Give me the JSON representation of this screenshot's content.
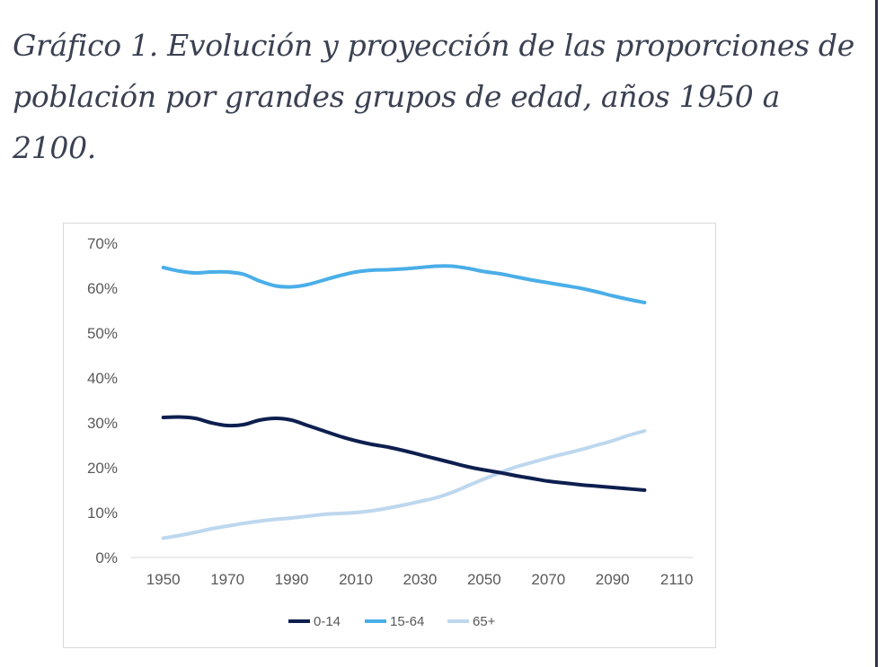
{
  "page": {
    "title": "Gráfico 1. Evolución y proyección de las proporciones de población por grandes grupos de edad, años 1950 a 2100."
  },
  "chart_data": {
    "type": "line",
    "title": "",
    "xlabel": "",
    "ylabel": "",
    "xlim": [
      1940,
      2115
    ],
    "ylim": [
      0,
      70
    ],
    "x_ticks": [
      1950,
      1970,
      1990,
      2010,
      2030,
      2050,
      2070,
      2090,
      2110
    ],
    "y_ticks": [
      "0%",
      "10%",
      "20%",
      "30%",
      "40%",
      "50%",
      "60%",
      "70%"
    ],
    "y_tick_values": [
      0,
      10,
      20,
      30,
      40,
      50,
      60,
      70
    ],
    "grid": false,
    "legend_position": "bottom",
    "x": [
      1950,
      1955,
      1960,
      1965,
      1970,
      1975,
      1980,
      1985,
      1990,
      1995,
      2000,
      2005,
      2010,
      2015,
      2020,
      2025,
      2030,
      2035,
      2040,
      2045,
      2050,
      2055,
      2060,
      2065,
      2070,
      2075,
      2080,
      2085,
      2090,
      2095,
      2100
    ],
    "series": [
      {
        "name": "0-14",
        "color": "#0d1f4f",
        "values": [
          31.2,
          31.3,
          31.0,
          30.0,
          29.4,
          29.6,
          30.6,
          31.0,
          30.6,
          29.4,
          28.2,
          27.0,
          26.0,
          25.2,
          24.6,
          23.8,
          22.9,
          22.0,
          21.1,
          20.2,
          19.5,
          18.9,
          18.2,
          17.6,
          17.0,
          16.6,
          16.2,
          15.9,
          15.6,
          15.3,
          15.0
        ]
      },
      {
        "name": "15-64",
        "color": "#4aaee8",
        "values": [
          64.6,
          63.8,
          63.4,
          63.6,
          63.6,
          63.1,
          61.6,
          60.5,
          60.3,
          60.8,
          61.8,
          62.8,
          63.6,
          64.0,
          64.1,
          64.3,
          64.6,
          64.9,
          64.9,
          64.4,
          63.7,
          63.2,
          62.5,
          61.8,
          61.2,
          60.6,
          60.0,
          59.2,
          58.3,
          57.5,
          56.8
        ]
      },
      {
        "name": "65+",
        "color": "#bdd7ee",
        "values": [
          4.3,
          4.9,
          5.6,
          6.4,
          7.0,
          7.6,
          8.1,
          8.5,
          8.8,
          9.2,
          9.6,
          9.8,
          10.0,
          10.4,
          11.0,
          11.7,
          12.5,
          13.3,
          14.5,
          16.0,
          17.5,
          18.9,
          20.2,
          21.2,
          22.2,
          23.1,
          24.0,
          25.0,
          26.0,
          27.2,
          28.2
        ]
      }
    ]
  }
}
